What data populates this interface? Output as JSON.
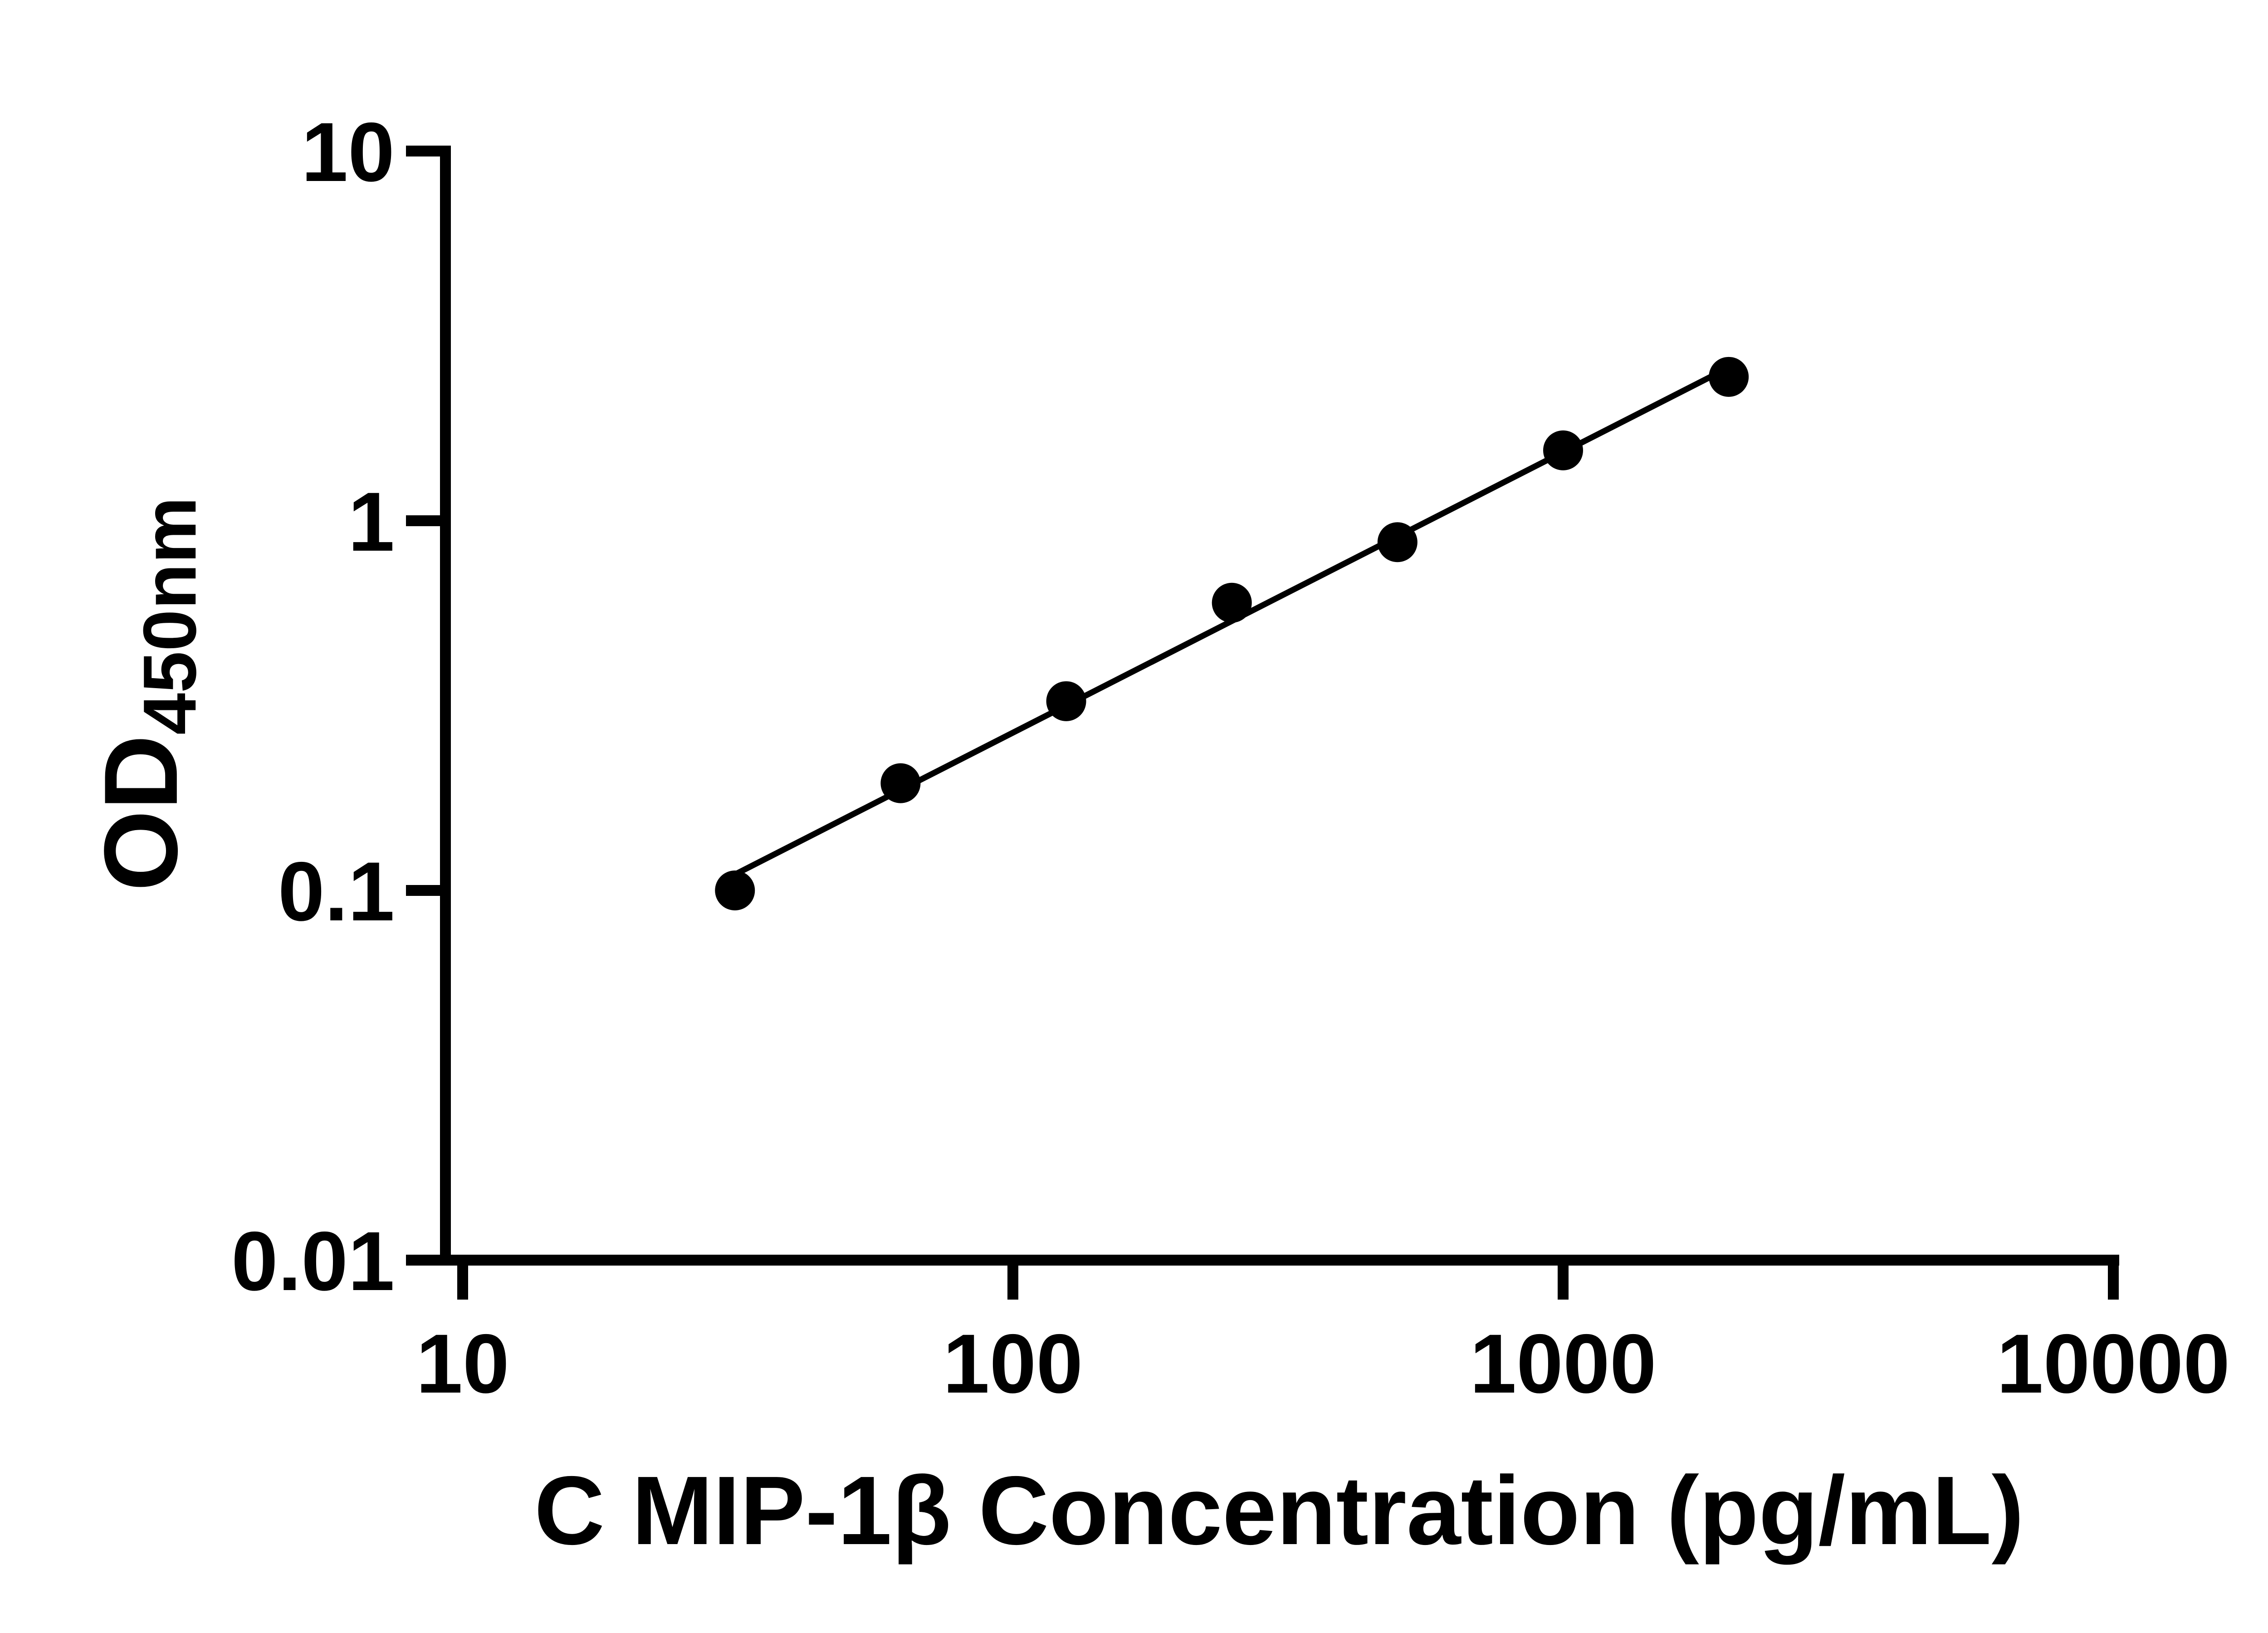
{
  "chart_data": {
    "type": "scatter",
    "title": "",
    "xlabel": "C MIP-1β Concentration (pg/mL)",
    "ylabel": "OD450nm",
    "ylabel_main": "OD",
    "ylabel_sub": "450nm",
    "x_scale": "log",
    "y_scale": "log",
    "xlim": [
      10,
      10000
    ],
    "ylim": [
      0.01,
      10
    ],
    "x_ticks": [
      "10",
      "100",
      "1000",
      "10000"
    ],
    "y_ticks": [
      "10",
      "1",
      "0.1",
      "0.01"
    ],
    "grid": false,
    "legend": false,
    "marker_color": "#000000",
    "line_color": "#000000",
    "series": [
      {
        "x": [
          31.25,
          62.5,
          125,
          250,
          500,
          1000,
          2000
        ],
        "y": [
          0.1,
          0.195,
          0.325,
          0.6,
          0.875,
          1.55,
          2.45
        ],
        "fit": "linear-loglog"
      }
    ]
  }
}
